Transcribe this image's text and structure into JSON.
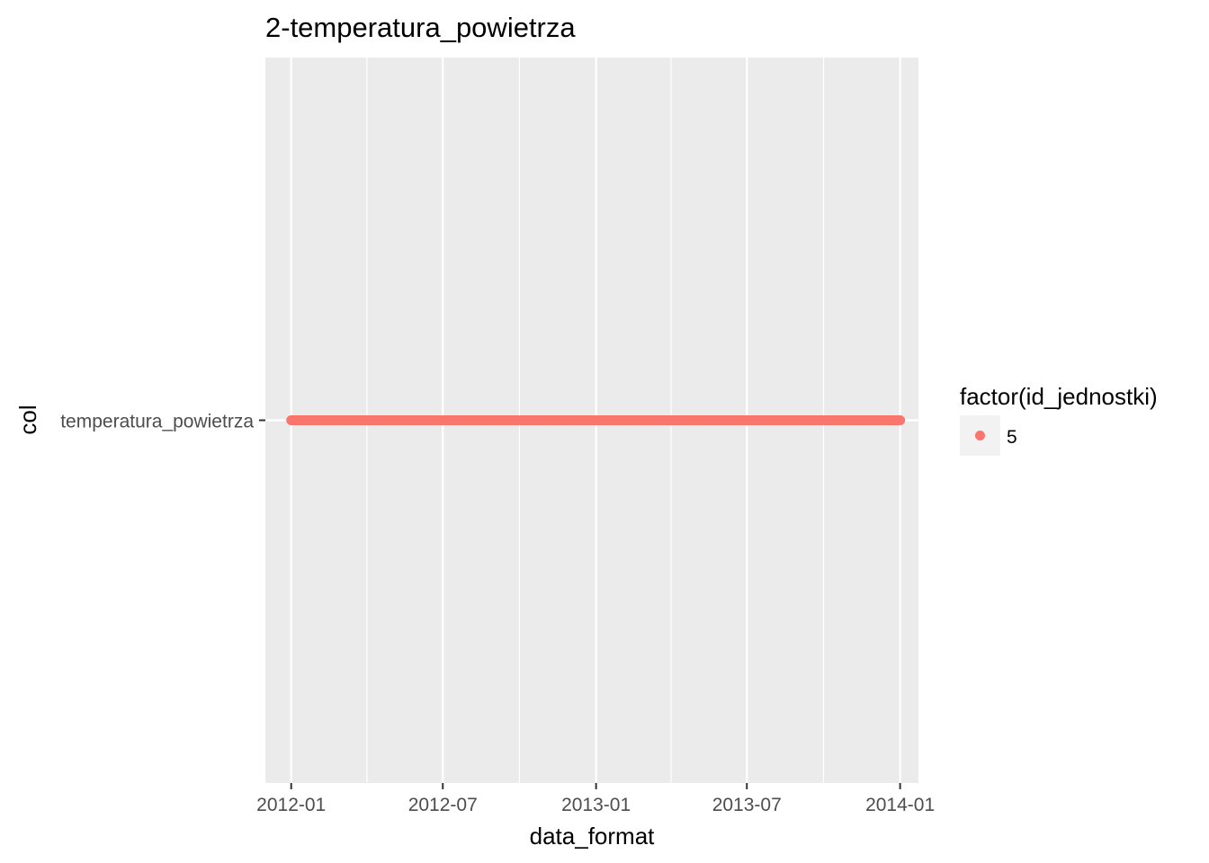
{
  "chart_data": {
    "type": "scatter",
    "title": "2-temperatura_powietrza",
    "xlabel": "data_format",
    "ylabel": "col",
    "x_type": "date",
    "xlim": [
      "2011-12-01",
      "2014-01-23"
    ],
    "x_ticks": [
      {
        "value": "2012-01-01",
        "label": "2012-01"
      },
      {
        "value": "2012-07-01",
        "label": "2012-07"
      },
      {
        "value": "2013-01-01",
        "label": "2013-01"
      },
      {
        "value": "2013-07-01",
        "label": "2013-07"
      },
      {
        "value": "2014-01-01",
        "label": "2014-01"
      }
    ],
    "x_minor_ticks": [
      "2012-04-01",
      "2012-10-01",
      "2013-04-01",
      "2013-10-01"
    ],
    "y_type": "categorical",
    "categories": [
      "temperatura_powietrza"
    ],
    "series": [
      {
        "name": "5",
        "color": "#F8766D",
        "category": "temperatura_powietrza",
        "x_start": "2012-01-01",
        "x_end": "2014-01-01",
        "frequency": "daily"
      }
    ],
    "legend": {
      "title": "factor(id_jednostki)",
      "placement": "right",
      "entries": [
        {
          "label": "5",
          "color": "#F8766D"
        }
      ]
    },
    "grid": true,
    "panel_background": "#EBEBEB",
    "grid_color": "#FFFFFF"
  }
}
